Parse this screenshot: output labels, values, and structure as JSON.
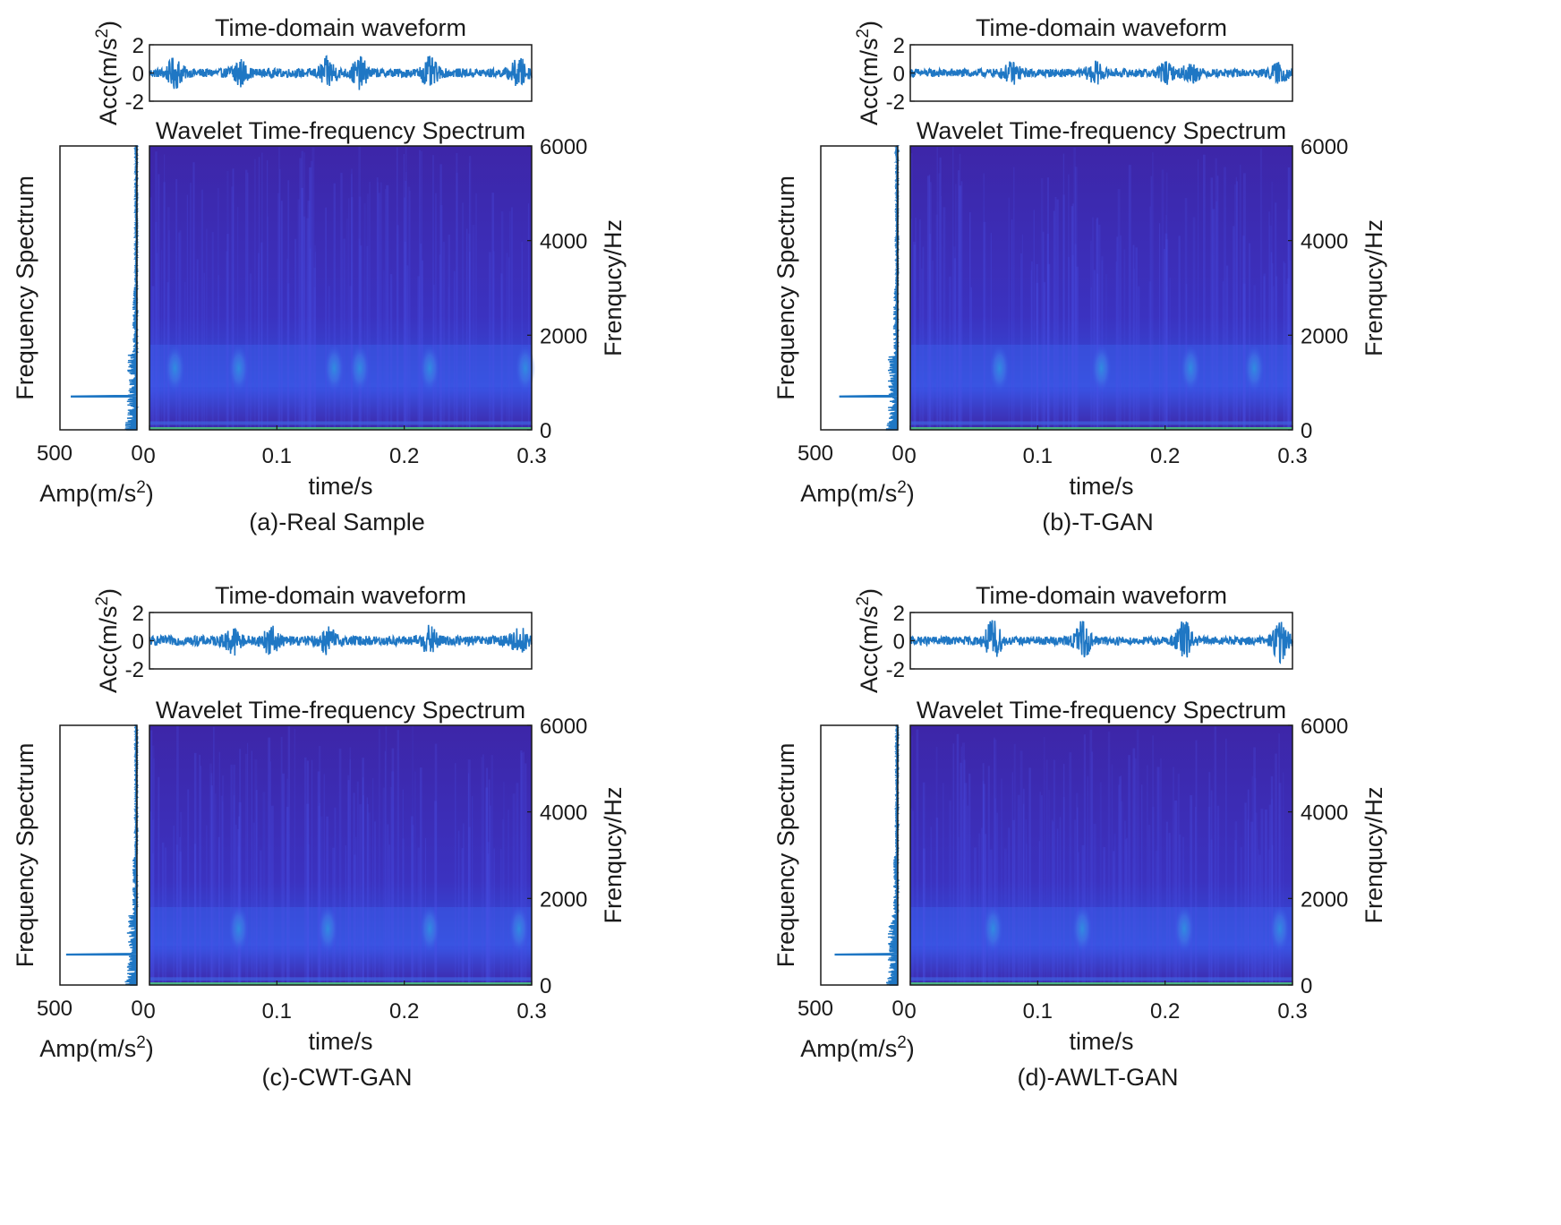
{
  "colors": {
    "signal": "#1f77c4",
    "spectrum_bg": "#3d26a8",
    "spectrum_hot": "#2f8fe0",
    "spectrum_peak": "#4fd27a",
    "axis": "#1a1a1a"
  },
  "chart_data": [
    {
      "type": "composite-time-frequency",
      "caption": "(a)-Real Sample",
      "waveform": {
        "title": "Time-domain waveform",
        "ylabel_base": "Acc(m/s",
        "ylabel_sup": "2",
        "ylabel_end": ")",
        "yticks": [
          "2",
          "0",
          "-2"
        ],
        "ylim": [
          -2,
          2
        ],
        "amplitude": 0.32,
        "bursts": [
          0.02,
          0.07,
          0.14,
          0.165,
          0.22,
          0.29
        ],
        "burst_amp": 0.9
      },
      "spectrogram": {
        "title": "Wavelet Time-frequency Spectrum",
        "xlabel": "time/s",
        "ylabel": "Frenqucy/Hz",
        "xticks": [
          "0",
          "0.1",
          "0.2",
          "0.3"
        ],
        "yticks": [
          "0",
          "2000",
          "4000",
          "6000"
        ],
        "xlim": [
          0,
          0.3
        ],
        "ylim": [
          0,
          6000
        ],
        "band_center_hz": 1300,
        "hotspots": [
          0.02,
          0.07,
          0.145,
          0.165,
          0.22,
          0.295
        ]
      },
      "frequency_spectrum": {
        "label": "Frequency Spectrum",
        "xlabel_base": "Amp(m/s",
        "xlabel_sup": "2",
        "xlabel_end": ")",
        "xticks": [
          "500",
          "0"
        ],
        "xlim": [
          500,
          0
        ],
        "peak_hz": 700,
        "peak_amp": 430
      }
    },
    {
      "type": "composite-time-frequency",
      "caption": "(b)-T-GAN",
      "waveform": {
        "title": "Time-domain waveform",
        "ylabel_base": "Acc(m/s",
        "ylabel_sup": "2",
        "ylabel_end": ")",
        "yticks": [
          "2",
          "0",
          "-2"
        ],
        "ylim": [
          -2,
          2
        ],
        "amplitude": 0.3,
        "bursts": [
          0.08,
          0.145,
          0.2,
          0.22,
          0.29
        ],
        "burst_amp": 0.6
      },
      "spectrogram": {
        "title": "Wavelet Time-frequency Spectrum",
        "xlabel": "time/s",
        "ylabel": "Frenqucy/Hz",
        "xticks": [
          "0",
          "0.1",
          "0.2",
          "0.3"
        ],
        "yticks": [
          "0",
          "2000",
          "4000",
          "6000"
        ],
        "xlim": [
          0,
          0.3
        ],
        "ylim": [
          0,
          6000
        ],
        "band_center_hz": 1300,
        "hotspots": [
          0.07,
          0.15,
          0.22,
          0.27
        ]
      },
      "frequency_spectrum": {
        "label": "Frequency Spectrum",
        "xlabel_base": "Amp(m/s",
        "xlabel_sup": "2",
        "xlabel_end": ")",
        "xticks": [
          "500",
          "0"
        ],
        "xlim": [
          500,
          0
        ],
        "peak_hz": 700,
        "peak_amp": 380
      }
    },
    {
      "type": "composite-time-frequency",
      "caption": "(c)-CWT-GAN",
      "waveform": {
        "title": "Time-domain waveform",
        "ylabel_base": "Acc(m/s",
        "ylabel_sup": "2",
        "ylabel_end": ")",
        "yticks": [
          "2",
          "0",
          "-2"
        ],
        "ylim": [
          -2,
          2
        ],
        "amplitude": 0.35,
        "bursts": [
          0.065,
          0.095,
          0.14,
          0.22,
          0.29
        ],
        "burst_amp": 0.8
      },
      "spectrogram": {
        "title": "Wavelet Time-frequency Spectrum",
        "xlabel": "time/s",
        "ylabel": "Frenqucy/Hz",
        "xticks": [
          "0",
          "0.1",
          "0.2",
          "0.3"
        ],
        "yticks": [
          "0",
          "2000",
          "4000",
          "6000"
        ],
        "xlim": [
          0,
          0.3
        ],
        "ylim": [
          0,
          6000
        ],
        "band_center_hz": 1300,
        "hotspots": [
          0.07,
          0.14,
          0.22,
          0.29
        ]
      },
      "frequency_spectrum": {
        "label": "Frequency Spectrum",
        "xlabel_base": "Amp(m/s",
        "xlabel_sup": "2",
        "xlabel_end": ")",
        "xticks": [
          "500",
          "0"
        ],
        "xlim": [
          500,
          0
        ],
        "peak_hz": 700,
        "peak_amp": 460
      }
    },
    {
      "type": "composite-time-frequency",
      "caption": "(d)-AWLT-GAN",
      "waveform": {
        "title": "Time-domain waveform",
        "ylabel_base": "Acc(m/s",
        "ylabel_sup": "2",
        "ylabel_end": ")",
        "yticks": [
          "2",
          "0",
          "-2"
        ],
        "ylim": [
          -2,
          2
        ],
        "amplitude": 0.3,
        "bursts": [
          0.065,
          0.135,
          0.215,
          0.29
        ],
        "burst_amp": 1.3
      },
      "spectrogram": {
        "title": "Wavelet Time-frequency Spectrum",
        "xlabel": "time/s",
        "ylabel": "Frenqucy/Hz",
        "xticks": [
          "0",
          "0.1",
          "0.2",
          "0.3"
        ],
        "yticks": [
          "0",
          "2000",
          "4000",
          "6000"
        ],
        "xlim": [
          0,
          0.3
        ],
        "ylim": [
          0,
          6000
        ],
        "band_center_hz": 1300,
        "hotspots": [
          0.065,
          0.135,
          0.215,
          0.29
        ]
      },
      "frequency_spectrum": {
        "label": "Frequency Spectrum",
        "xlabel_base": "Amp(m/s",
        "xlabel_sup": "2",
        "xlabel_end": ")",
        "xticks": [
          "500",
          "0"
        ],
        "xlim": [
          500,
          0
        ],
        "peak_hz": 700,
        "peak_amp": 410
      }
    }
  ]
}
